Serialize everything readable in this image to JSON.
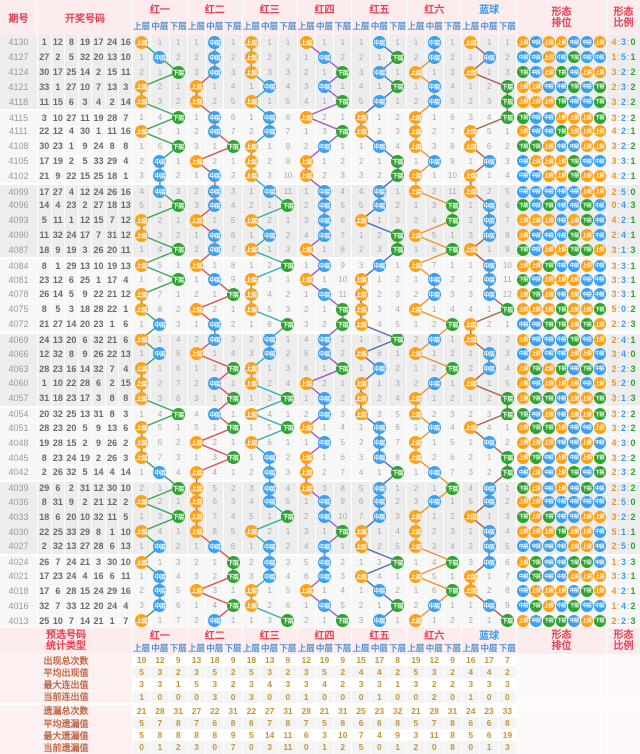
{
  "header": {
    "issue_label": "期号",
    "numbers_label": "开奖号码",
    "groups": [
      "红一",
      "红二",
      "红三",
      "红四",
      "红五",
      "红六",
      "蓝球"
    ],
    "group_colors": [
      "#e53e51",
      "#e53e51",
      "#e53e51",
      "#e53e51",
      "#e53e51",
      "#e53e51",
      "#3b9ff0"
    ],
    "sub_labels": [
      "上层",
      "中层",
      "下层"
    ],
    "paiwei_label": [
      "形态",
      "排位"
    ],
    "ratio_label": [
      "形态",
      "比例"
    ]
  },
  "labels": {
    "layer_names": [
      "上层",
      "中层",
      "下层"
    ]
  },
  "colors": {
    "ball_fill": [
      "#ffa014",
      "#3b9ff0",
      "#2ea22e"
    ],
    "line_colors": [
      "#3aa65a",
      "#e05252",
      "#2fb3a8",
      "#a055d5",
      "#4a6fc0",
      "#f0922e",
      "#a8604f"
    ],
    "ratio_colors": [
      "#f0922e",
      "#3b9ff0",
      "#2ea22e"
    ],
    "band_a": "#ededed",
    "band_b": "#f7f7f7",
    "header_pink": "#fdecee"
  },
  "chart_data": {
    "type": "table",
    "title": "双色球形态走势图 (上层/中层/下层)",
    "rows": [
      {
        "issue": "4130",
        "nums": [
          1,
          12,
          8,
          19,
          17,
          24,
          16
        ],
        "layers": [
          0,
          1,
          0,
          0,
          1,
          1,
          0
        ],
        "ratio": "4:3:0"
      },
      {
        "issue": "4127",
        "nums": [
          27,
          2,
          5,
          32,
          20,
          13,
          10
        ],
        "layers": [
          1,
          1,
          0,
          1,
          2,
          1,
          1
        ],
        "ratio": "1:5:1"
      },
      {
        "issue": "4124",
        "nums": [
          30,
          17,
          25,
          14,
          2,
          15,
          11
        ],
        "layers": [
          2,
          1,
          0,
          2,
          1,
          0,
          0
        ],
        "ratio": "3:2:2"
      },
      {
        "issue": "4121",
        "nums": [
          33,
          1,
          27,
          10,
          7,
          13,
          3
        ],
        "layers": [
          0,
          0,
          1,
          1,
          2,
          1,
          2
        ],
        "ratio": "2:3:2"
      },
      {
        "issue": "4118",
        "nums": [
          11,
          15,
          6,
          3,
          4,
          2,
          14
        ],
        "layers": [
          0,
          0,
          0,
          2,
          1,
          1,
          2
        ],
        "ratio": "3:2:2"
      },
      {
        "issue": "4115",
        "nums": [
          3,
          10,
          27,
          11,
          19,
          28,
          7
        ],
        "layers": [
          2,
          1,
          1,
          0,
          0,
          0,
          2
        ],
        "ratio": "3:2:2"
      },
      {
        "issue": "4111",
        "nums": [
          22,
          12,
          4,
          30,
          1,
          11,
          16
        ],
        "layers": [
          0,
          1,
          1,
          2,
          0,
          0,
          0
        ],
        "ratio": "4:2:1"
      },
      {
        "issue": "4108",
        "nums": [
          30,
          23,
          1,
          9,
          24,
          8,
          8
        ],
        "layers": [
          2,
          2,
          0,
          1,
          1,
          0,
          0
        ],
        "ratio": "3:2:2"
      },
      {
        "issue": "4105",
        "nums": [
          17,
          19,
          2,
          5,
          33,
          29,
          4
        ],
        "layers": [
          1,
          0,
          0,
          0,
          2,
          1,
          1
        ],
        "ratio": "3:3:1"
      },
      {
        "issue": "4102",
        "nums": [
          21,
          9,
          22,
          15,
          25,
          18,
          1
        ],
        "layers": [
          1,
          1,
          0,
          0,
          2,
          0,
          0
        ],
        "ratio": "4:2:1"
      },
      {
        "issue": "4099",
        "nums": [
          17,
          27,
          4,
          12,
          24,
          26,
          16
        ],
        "layers": [
          1,
          1,
          1,
          1,
          1,
          0,
          0
        ],
        "ratio": "2:5:0"
      },
      {
        "issue": "4096",
        "nums": [
          14,
          4,
          23,
          2,
          27,
          18,
          13
        ],
        "layers": [
          2,
          1,
          2,
          1,
          1,
          2,
          1
        ],
        "ratio": "0:4:3"
      },
      {
        "issue": "4093",
        "nums": [
          5,
          11,
          1,
          12,
          15,
          7,
          12
        ],
        "layers": [
          0,
          0,
          0,
          1,
          0,
          2,
          1
        ],
        "ratio": "4:2:1"
      },
      {
        "issue": "4090",
        "nums": [
          11,
          32,
          24,
          17,
          7,
          31,
          12
        ],
        "layers": [
          0,
          1,
          1,
          1,
          2,
          0,
          1
        ],
        "ratio": "2:4:1"
      },
      {
        "issue": "4087",
        "nums": [
          18,
          9,
          19,
          3,
          26,
          20,
          11
        ],
        "layers": [
          2,
          1,
          0,
          0,
          2,
          2,
          0
        ],
        "ratio": "3:1:3"
      },
      {
        "issue": "4084",
        "nums": [
          8,
          1,
          29,
          13,
          10,
          19,
          13
        ],
        "layers": [
          0,
          0,
          2,
          1,
          1,
          0,
          1
        ],
        "ratio": "3:3:1"
      },
      {
        "issue": "4081",
        "nums": [
          23,
          12,
          6,
          25,
          1,
          17,
          4
        ],
        "layers": [
          2,
          1,
          0,
          0,
          0,
          1,
          1
        ],
        "ratio": "3:3:1"
      },
      {
        "issue": "4078",
        "nums": [
          26,
          14,
          5,
          9,
          22,
          21,
          12
        ],
        "layers": [
          0,
          2,
          0,
          1,
          0,
          1,
          1
        ],
        "ratio": "3:3:1"
      },
      {
        "issue": "4075",
        "nums": [
          8,
          5,
          3,
          18,
          28,
          22,
          1
        ],
        "layers": [
          0,
          0,
          0,
          2,
          0,
          0,
          2
        ],
        "ratio": "5:0:2"
      },
      {
        "issue": "4072",
        "nums": [
          21,
          27,
          14,
          20,
          23,
          1,
          6
        ],
        "layers": [
          1,
          1,
          2,
          2,
          0,
          2,
          0
        ],
        "ratio": "2:2:3"
      },
      {
        "issue": "4069",
        "nums": [
          24,
          13,
          20,
          6,
          32,
          21,
          6
        ],
        "layers": [
          0,
          1,
          1,
          1,
          2,
          1,
          0
        ],
        "ratio": "2:4:1"
      },
      {
        "issue": "4066",
        "nums": [
          12,
          32,
          8,
          9,
          26,
          22,
          13
        ],
        "layers": [
          1,
          0,
          1,
          1,
          0,
          0,
          1
        ],
        "ratio": "3:4:0"
      },
      {
        "issue": "4063",
        "nums": [
          28,
          23,
          16,
          14,
          32,
          7,
          4
        ],
        "layers": [
          0,
          2,
          0,
          2,
          1,
          2,
          1
        ],
        "ratio": "2:2:3"
      },
      {
        "issue": "4060",
        "nums": [
          1,
          10,
          22,
          28,
          6,
          2,
          15
        ],
        "layers": [
          0,
          1,
          0,
          0,
          0,
          1,
          0
        ],
        "ratio": "5:2:0"
      },
      {
        "issue": "4057",
        "nums": [
          31,
          18,
          23,
          17,
          3,
          8,
          8
        ],
        "layers": [
          0,
          2,
          2,
          1,
          0,
          0,
          2
        ],
        "ratio": "3:1:3"
      },
      {
        "issue": "4054",
        "nums": [
          20,
          32,
          25,
          13,
          31,
          8,
          3
        ],
        "layers": [
          2,
          1,
          0,
          1,
          0,
          0,
          2
        ],
        "ratio": "3:2:2"
      },
      {
        "issue": "4051",
        "nums": [
          28,
          23,
          20,
          5,
          9,
          13,
          6
        ],
        "layers": [
          0,
          2,
          2,
          0,
          1,
          1,
          0
        ],
        "ratio": "3:2:2"
      },
      {
        "issue": "4048",
        "nums": [
          19,
          28,
          15,
          2,
          9,
          26,
          2
        ],
        "layers": [
          0,
          0,
          0,
          1,
          1,
          0,
          1
        ],
        "ratio": "4:3:0"
      },
      {
        "issue": "4045",
        "nums": [
          8,
          23,
          24,
          19,
          2,
          26,
          3
        ],
        "layers": [
          0,
          2,
          1,
          0,
          1,
          0,
          2
        ],
        "ratio": "3:2:2"
      },
      {
        "issue": "4042",
        "nums": [
          2,
          26,
          32,
          5,
          14,
          4,
          14
        ],
        "layers": [
          1,
          0,
          1,
          0,
          2,
          1,
          2
        ],
        "ratio": "2:3:2"
      },
      {
        "issue": "4039",
        "nums": [
          29,
          6,
          2,
          31,
          12,
          30,
          10
        ],
        "layers": [
          2,
          0,
          1,
          0,
          1,
          2,
          1
        ],
        "ratio": "2:3:2"
      },
      {
        "issue": "4036",
        "nums": [
          8,
          31,
          9,
          2,
          21,
          12,
          2
        ],
        "layers": [
          0,
          0,
          1,
          1,
          1,
          1,
          1
        ],
        "ratio": "2:5:0"
      },
      {
        "issue": "4033",
        "nums": [
          18,
          6,
          20,
          10,
          32,
          11,
          5
        ],
        "layers": [
          2,
          0,
          2,
          1,
          1,
          0,
          0
        ],
        "ratio": "3:2:2"
      },
      {
        "issue": "4030",
        "nums": [
          22,
          25,
          33,
          29,
          8,
          1,
          10
        ],
        "layers": [
          0,
          0,
          0,
          2,
          0,
          0,
          1
        ],
        "ratio": "5:1:1"
      },
      {
        "issue": "4027",
        "nums": [
          2,
          32,
          13,
          27,
          28,
          6,
          13
        ],
        "layers": [
          1,
          1,
          1,
          1,
          0,
          0,
          1
        ],
        "ratio": "2:5:0"
      },
      {
        "issue": "4024",
        "nums": [
          26,
          7,
          24,
          21,
          3,
          30,
          10
        ],
        "layers": [
          0,
          2,
          1,
          1,
          2,
          2,
          1
        ],
        "ratio": "1:3:3"
      },
      {
        "issue": "4021",
        "nums": [
          17,
          23,
          24,
          4,
          16,
          6,
          11
        ],
        "layers": [
          1,
          2,
          1,
          1,
          0,
          0,
          0
        ],
        "ratio": "3:3:1"
      },
      {
        "issue": "4018",
        "nums": [
          17,
          6,
          28,
          15,
          24,
          29,
          16
        ],
        "layers": [
          1,
          0,
          0,
          0,
          1,
          2,
          0
        ],
        "ratio": "4:2:1"
      },
      {
        "issue": "4016",
        "nums": [
          32,
          7,
          33,
          12,
          20,
          24,
          4
        ],
        "layers": [
          1,
          2,
          0,
          1,
          2,
          1,
          1
        ],
        "ratio": "1:4:2"
      },
      {
        "issue": "4013",
        "nums": [
          25,
          10,
          7,
          14,
          21,
          1,
          7
        ],
        "layers": [
          0,
          1,
          2,
          2,
          1,
          0,
          2
        ],
        "ratio": "2:2:3"
      }
    ]
  },
  "stats": {
    "header_line1": "预选号码",
    "header_line2": "统计类型",
    "row_labels": [
      "出现总次数",
      "平均出现值",
      "最大连出值",
      "当前连出值",
      "遗漏总次数",
      "平均遗漏值",
      "最大遗漏值",
      "当前遗漏值"
    ],
    "values": [
      [
        19,
        12,
        9,
        13,
        18,
        9,
        18,
        13,
        9,
        12,
        19,
        9,
        15,
        17,
        8,
        19,
        12,
        9,
        16,
        17,
        7
      ],
      [
        5,
        3,
        2,
        3,
        5,
        2,
        5,
        3,
        2,
        3,
        5,
        2,
        4,
        4,
        2,
        5,
        3,
        2,
        4,
        4,
        2
      ],
      [
        3,
        3,
        1,
        5,
        3,
        2,
        3,
        4,
        3,
        3,
        4,
        2,
        3,
        3,
        1,
        3,
        2,
        2,
        3,
        3,
        3
      ],
      [
        1,
        0,
        0,
        0,
        3,
        0,
        3,
        0,
        0,
        1,
        0,
        0,
        0,
        1,
        0,
        0,
        2,
        0,
        1,
        0,
        0
      ],
      [
        21,
        28,
        31,
        27,
        22,
        31,
        22,
        27,
        31,
        28,
        21,
        31,
        25,
        23,
        32,
        21,
        28,
        31,
        24,
        23,
        33
      ],
      [
        5,
        7,
        8,
        7,
        6,
        8,
        6,
        7,
        8,
        7,
        5,
        8,
        6,
        6,
        8,
        5,
        7,
        8,
        6,
        6,
        8
      ],
      [
        5,
        8,
        8,
        8,
        8,
        9,
        5,
        14,
        11,
        6,
        3,
        10,
        7,
        4,
        9,
        3,
        11,
        8,
        5,
        6,
        19
      ],
      [
        0,
        1,
        2,
        3,
        0,
        7,
        0,
        3,
        11,
        0,
        1,
        2,
        5,
        0,
        1,
        2,
        0,
        8,
        0,
        1,
        3
      ]
    ]
  }
}
